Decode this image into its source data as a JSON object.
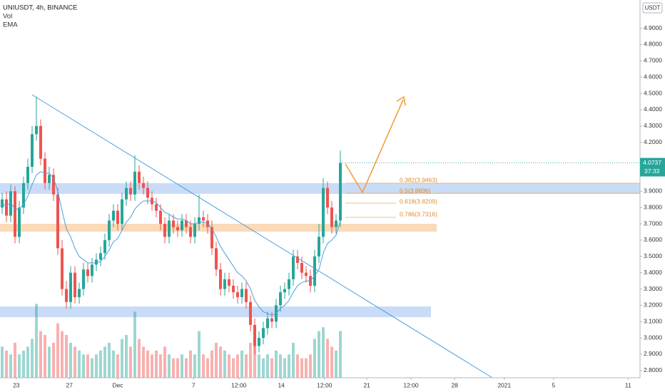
{
  "chart_data": {
    "type": "candlestick",
    "title": "UNIUSDT, 4h, BINANCE",
    "indicators": [
      "Vol",
      "EMA"
    ],
    "currency": "USDT",
    "up_color": "#26a69a",
    "down_color": "#ef5350",
    "ema_color": "#4a9fe0",
    "open": [
      3.8,
      3.85,
      3.75,
      3.9,
      3.62,
      3.8,
      3.95,
      4.05,
      4.25,
      4.3,
      4.1,
      3.95,
      4.0,
      3.88,
      3.55,
      3.3,
      3.22,
      3.4,
      3.25,
      3.3,
      3.42,
      3.38,
      3.45,
      3.48,
      3.52,
      3.6,
      3.72,
      3.78,
      3.7,
      3.85,
      3.92,
      3.88,
      4.02,
      3.95,
      3.92,
      3.86,
      3.82,
      3.78,
      3.7,
      3.62,
      3.72,
      3.68,
      3.66,
      3.72,
      3.68,
      3.62,
      3.7,
      3.74,
      3.72,
      3.68,
      3.55,
      3.42,
      3.3,
      3.36,
      3.32,
      3.28,
      3.25,
      3.3,
      3.22,
      3.08,
      2.95,
      3.0,
      3.06,
      3.12,
      3.1,
      3.2,
      3.28,
      3.3,
      3.36,
      3.5,
      3.46,
      3.4,
      3.38,
      3.32,
      3.5,
      3.62,
      3.92,
      3.8,
      3.68,
      3.72
    ],
    "high": [
      3.89,
      3.9,
      3.94,
      3.93,
      3.84,
      3.99,
      4.1,
      4.3,
      4.48,
      4.34,
      4.14,
      4.05,
      4.04,
      3.92,
      3.6,
      3.35,
      3.44,
      3.44,
      3.34,
      3.46,
      3.46,
      3.49,
      3.52,
      3.56,
      3.64,
      3.76,
      3.82,
      3.82,
      3.89,
      3.96,
      3.96,
      4.12,
      4.06,
      3.99,
      3.96,
      3.9,
      3.86,
      3.82,
      3.74,
      3.76,
      3.76,
      3.72,
      3.76,
      3.76,
      3.72,
      3.74,
      3.88,
      3.78,
      3.76,
      3.72,
      3.59,
      3.46,
      3.4,
      3.4,
      3.36,
      3.32,
      3.34,
      3.34,
      3.26,
      3.12,
      3.04,
      3.1,
      3.16,
      3.16,
      3.24,
      3.32,
      3.34,
      3.4,
      3.54,
      3.54,
      3.5,
      3.44,
      3.42,
      3.54,
      3.7,
      3.98,
      3.96,
      3.84,
      3.76,
      4.15
    ],
    "low": [
      3.76,
      3.71,
      3.71,
      3.58,
      3.58,
      3.76,
      3.91,
      4.01,
      4.21,
      4.06,
      3.91,
      3.91,
      3.84,
      3.51,
      3.26,
      3.18,
      3.18,
      3.21,
      3.21,
      3.26,
      3.34,
      3.34,
      3.41,
      3.44,
      3.48,
      3.56,
      3.68,
      3.66,
      3.66,
      3.81,
      3.84,
      3.84,
      3.91,
      3.88,
      3.82,
      3.78,
      3.74,
      3.66,
      3.58,
      3.58,
      3.64,
      3.62,
      3.62,
      3.64,
      3.58,
      3.58,
      3.66,
      3.68,
      3.64,
      3.51,
      3.38,
      3.26,
      3.26,
      3.28,
      3.24,
      3.21,
      3.21,
      3.18,
      3.04,
      2.9,
      2.91,
      2.96,
      3.02,
      3.06,
      3.06,
      3.16,
      3.24,
      3.26,
      3.32,
      3.42,
      3.36,
      3.34,
      3.28,
      3.28,
      3.46,
      3.58,
      3.76,
      3.64,
      3.64,
      3.68
    ],
    "close": [
      3.85,
      3.75,
      3.9,
      3.62,
      3.8,
      3.95,
      4.05,
      4.25,
      4.3,
      4.1,
      3.95,
      4.0,
      3.88,
      3.55,
      3.3,
      3.22,
      3.4,
      3.25,
      3.3,
      3.42,
      3.38,
      3.45,
      3.48,
      3.52,
      3.6,
      3.72,
      3.78,
      3.7,
      3.85,
      3.92,
      3.88,
      4.02,
      3.95,
      3.92,
      3.86,
      3.82,
      3.78,
      3.7,
      3.62,
      3.72,
      3.68,
      3.66,
      3.72,
      3.68,
      3.62,
      3.7,
      3.74,
      3.72,
      3.68,
      3.55,
      3.42,
      3.3,
      3.36,
      3.32,
      3.28,
      3.25,
      3.3,
      3.22,
      3.08,
      2.95,
      3.0,
      3.06,
      3.12,
      3.1,
      3.2,
      3.28,
      3.3,
      3.36,
      3.5,
      3.46,
      3.4,
      3.38,
      3.32,
      3.5,
      3.62,
      3.92,
      3.8,
      3.68,
      3.72,
      4.0737
    ],
    "volume": [
      40,
      35,
      30,
      45,
      30,
      35,
      40,
      50,
      95,
      60,
      55,
      40,
      45,
      70,
      60,
      55,
      45,
      40,
      35,
      30,
      30,
      25,
      30,
      35,
      40,
      45,
      35,
      30,
      50,
      55,
      40,
      85,
      50,
      40,
      35,
      30,
      35,
      30,
      40,
      30,
      25,
      25,
      30,
      25,
      35,
      30,
      60,
      30,
      25,
      35,
      45,
      40,
      35,
      30,
      25,
      30,
      35,
      30,
      45,
      60,
      30,
      25,
      30,
      25,
      35,
      30,
      25,
      30,
      45,
      30,
      25,
      25,
      30,
      50,
      60,
      65,
      50,
      40,
      35,
      60
    ],
    "vol_lim": [
      0,
      110
    ],
    "ema": [
      3.82,
      3.81,
      3.83,
      3.79,
      3.79,
      3.82,
      3.87,
      3.94,
      4.0,
      4.02,
      4.01,
      4.01,
      3.98,
      3.9,
      3.78,
      3.67,
      3.62,
      3.55,
      3.5,
      3.48,
      3.46,
      3.46,
      3.46,
      3.47,
      3.5,
      3.54,
      3.59,
      3.61,
      3.66,
      3.71,
      3.74,
      3.79,
      3.82,
      3.84,
      3.84,
      3.84,
      3.83,
      3.8,
      3.77,
      3.76,
      3.74,
      3.73,
      3.73,
      3.72,
      3.7,
      3.7,
      3.71,
      3.71,
      3.7,
      3.67,
      3.62,
      3.56,
      3.52,
      3.48,
      3.44,
      3.4,
      3.38,
      3.35,
      3.3,
      3.23,
      3.19,
      3.16,
      3.15,
      3.14,
      3.15,
      3.18,
      3.2,
      3.23,
      3.28,
      3.32,
      3.34,
      3.35,
      3.35,
      3.38,
      3.42,
      3.52,
      3.58,
      3.6,
      3.63,
      3.72
    ],
    "last_price_label": "4.0737",
    "countdown": "37:33",
    "fib_labels": [
      "0.382(3.9463)",
      "0.5(3.8836)",
      "0.618(3.8209)",
      "0.786(3.7316)"
    ],
    "ylim": [
      2.76,
      5.06
    ],
    "yticks": [
      {
        "value": 2.8,
        "label": "2.8000"
      },
      {
        "value": 2.9,
        "label": "2.9000"
      },
      {
        "value": 3.0,
        "label": "3.0000"
      },
      {
        "value": 3.1,
        "label": "3.1000"
      },
      {
        "value": 3.2,
        "label": "3.2000"
      },
      {
        "value": 3.3,
        "label": "3.3000"
      },
      {
        "value": 3.4,
        "label": "3.4000"
      },
      {
        "value": 3.5,
        "label": "3.5000"
      },
      {
        "value": 3.6,
        "label": "3.6000"
      },
      {
        "value": 3.7,
        "label": "3.7000"
      },
      {
        "value": 3.8,
        "label": "3.8000"
      },
      {
        "value": 3.9,
        "label": "3.9000"
      },
      {
        "value": 4.2,
        "label": "4.2000"
      },
      {
        "value": 4.3,
        "label": "4.3000"
      },
      {
        "value": 4.4,
        "label": "4.4000"
      },
      {
        "value": 4.5,
        "label": "4.5000"
      },
      {
        "value": 4.6,
        "label": "4.6000"
      },
      {
        "value": 4.7,
        "label": "4.7000"
      },
      {
        "value": 4.8,
        "label": "4.8000"
      },
      {
        "value": 4.9,
        "label": "4.9000"
      }
    ],
    "xlim": [
      0,
      149.5
    ],
    "xticks": [
      {
        "value": 3.8,
        "label": "23"
      },
      {
        "value": 16.2,
        "label": "27"
      },
      {
        "value": 27.5,
        "label": "Dec"
      },
      {
        "value": 45.2,
        "label": "7"
      },
      {
        "value": 55.8,
        "label": "12:00"
      },
      {
        "value": 65.7,
        "label": "14"
      },
      {
        "value": 75.8,
        "label": "12:00"
      },
      {
        "value": 85.7,
        "label": "21"
      },
      {
        "value": 96,
        "label": "12:00"
      },
      {
        "value": 106.2,
        "label": "28"
      },
      {
        "value": 117.8,
        "label": "2021"
      },
      {
        "value": 129.3,
        "label": "5"
      },
      {
        "value": 146.7,
        "label": "11"
      }
    ],
    "grid": false
  }
}
